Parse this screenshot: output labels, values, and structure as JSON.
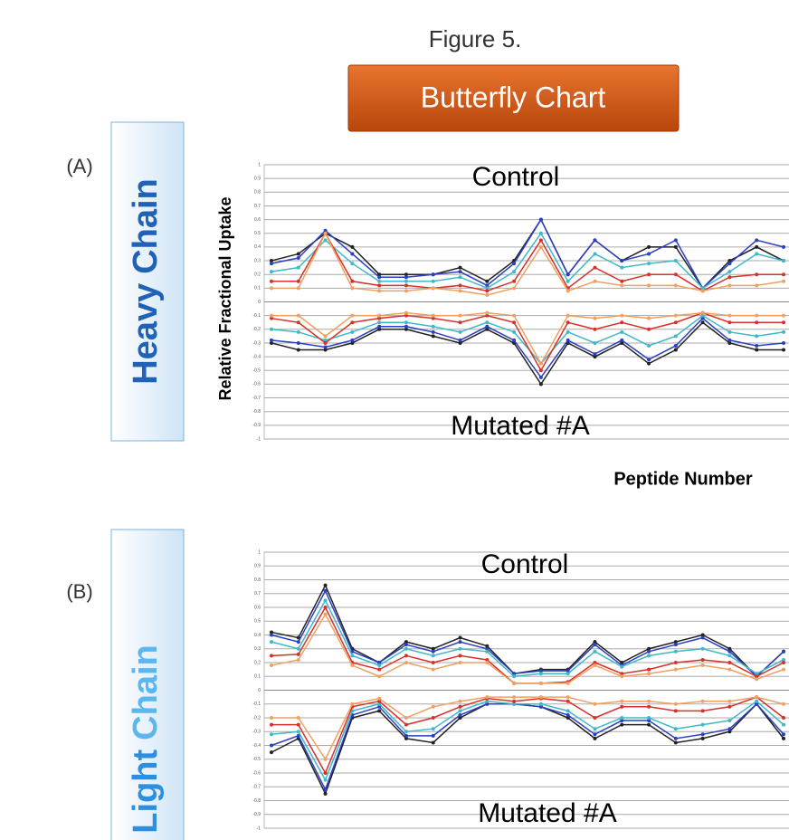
{
  "header": {
    "figure": "Figure 5.",
    "button": "Butterfly Chart"
  },
  "chart_data": [
    {
      "type": "line",
      "panel": "(A)",
      "side_label": [
        "Heavy",
        "Chain"
      ],
      "title": "Control",
      "annotation": "Mutated #A",
      "ylabel": "Relative Fractional Uptake",
      "xlabel": "Peptide Number",
      "categories": [
        null,
        null,
        null,
        null,
        null,
        null,
        null,
        null,
        null,
        null,
        null,
        null,
        null,
        null,
        null,
        null,
        null,
        null,
        null,
        null
      ],
      "ylim": [
        -1,
        1
      ],
      "yticks": [
        1,
        0.9,
        0.8,
        0.7,
        0.6,
        0.5,
        0.4,
        0.3,
        0.2,
        0.1,
        0,
        -0.1,
        -0.2,
        -0.3,
        -0.4,
        -0.5,
        -0.6,
        -0.7,
        -0.8,
        -0.9,
        -1
      ],
      "grid": true,
      "series": [
        {
          "color": "#222222",
          "values": [
            0.3,
            0.35,
            0.5,
            0.4,
            0.2,
            0.2,
            0.2,
            0.25,
            0.15,
            0.3,
            0.6,
            0.2,
            0.45,
            0.3,
            0.4,
            0.4,
            0.1,
            0.3,
            0.4,
            0.3
          ]
        },
        {
          "color": "#2b3fc4",
          "values": [
            0.28,
            0.32,
            0.52,
            0.35,
            0.18,
            0.18,
            0.2,
            0.22,
            0.12,
            0.28,
            0.6,
            0.2,
            0.45,
            0.3,
            0.35,
            0.45,
            0.1,
            0.28,
            0.45,
            0.4
          ]
        },
        {
          "color": "#3fb8c8",
          "values": [
            0.22,
            0.25,
            0.45,
            0.28,
            0.15,
            0.15,
            0.15,
            0.18,
            0.1,
            0.22,
            0.5,
            0.15,
            0.35,
            0.25,
            0.28,
            0.3,
            0.1,
            0.22,
            0.35,
            0.3
          ]
        },
        {
          "color": "#d8302a",
          "values": [
            0.15,
            0.15,
            0.5,
            0.15,
            0.12,
            0.12,
            0.1,
            0.12,
            0.08,
            0.15,
            0.45,
            0.1,
            0.25,
            0.15,
            0.2,
            0.2,
            0.08,
            0.18,
            0.2,
            0.2
          ]
        },
        {
          "color": "#f0a060",
          "values": [
            0.1,
            0.1,
            0.5,
            0.1,
            0.08,
            0.08,
            0.1,
            0.08,
            0.05,
            0.1,
            0.4,
            0.08,
            0.15,
            0.12,
            0.12,
            0.12,
            0.08,
            0.12,
            0.12,
            0.15
          ]
        },
        {
          "color": "#222222",
          "values": [
            -0.3,
            -0.35,
            -0.35,
            -0.3,
            -0.2,
            -0.2,
            -0.25,
            -0.3,
            -0.2,
            -0.3,
            -0.6,
            -0.3,
            -0.4,
            -0.3,
            -0.45,
            -0.35,
            -0.15,
            -0.3,
            -0.35,
            -0.35
          ]
        },
        {
          "color": "#2b3fc4",
          "values": [
            -0.28,
            -0.3,
            -0.33,
            -0.28,
            -0.18,
            -0.18,
            -0.22,
            -0.28,
            -0.18,
            -0.28,
            -0.55,
            -0.28,
            -0.38,
            -0.28,
            -0.42,
            -0.32,
            -0.12,
            -0.28,
            -0.32,
            -0.3
          ]
        },
        {
          "color": "#3fb8c8",
          "values": [
            -0.2,
            -0.22,
            -0.28,
            -0.22,
            -0.15,
            -0.15,
            -0.18,
            -0.22,
            -0.15,
            -0.22,
            -0.45,
            -0.22,
            -0.3,
            -0.22,
            -0.32,
            -0.25,
            -0.1,
            -0.22,
            -0.25,
            -0.22
          ]
        },
        {
          "color": "#d8302a",
          "values": [
            -0.12,
            -0.15,
            -0.3,
            -0.15,
            -0.12,
            -0.1,
            -0.12,
            -0.15,
            -0.1,
            -0.15,
            -0.5,
            -0.15,
            -0.2,
            -0.15,
            -0.2,
            -0.15,
            -0.08,
            -0.15,
            -0.15,
            -0.15
          ]
        },
        {
          "color": "#f0a060",
          "values": [
            -0.1,
            -0.1,
            -0.25,
            -0.1,
            -0.1,
            -0.08,
            -0.1,
            -0.1,
            -0.08,
            -0.1,
            -0.45,
            -0.1,
            -0.12,
            -0.1,
            -0.12,
            -0.1,
            -0.08,
            -0.1,
            -0.1,
            -0.1
          ]
        }
      ]
    },
    {
      "type": "line",
      "panel": "(B)",
      "side_label": [
        "Light",
        "Chain"
      ],
      "title": "Control",
      "annotation": "Mutated #A",
      "categories": [
        null,
        null,
        null,
        null,
        null,
        null,
        null,
        null,
        null,
        null,
        null,
        null,
        null,
        null,
        null,
        null,
        null,
        null,
        null,
        null
      ],
      "ylim": [
        -1,
        1
      ],
      "yticks": [
        1,
        0.9,
        0.8,
        0.7,
        0.6,
        0.5,
        0.4,
        0.3,
        0.2,
        0.1,
        0,
        -0.1,
        -0.2,
        -0.3,
        -0.4,
        -0.5,
        -0.6,
        -0.7,
        -0.8,
        -0.9,
        -1
      ],
      "grid": true,
      "series": [
        {
          "color": "#222222",
          "values": [
            0.42,
            0.38,
            0.76,
            0.3,
            0.2,
            0.35,
            0.3,
            0.38,
            0.32,
            0.12,
            0.15,
            0.15,
            0.35,
            0.2,
            0.3,
            0.35,
            0.4,
            0.3,
            0.1,
            0.28
          ]
        },
        {
          "color": "#2b3fc4",
          "values": [
            0.4,
            0.35,
            0.72,
            0.28,
            0.2,
            0.33,
            0.28,
            0.35,
            0.3,
            0.12,
            0.14,
            0.14,
            0.33,
            0.18,
            0.28,
            0.33,
            0.38,
            0.28,
            0.1,
            0.28
          ]
        },
        {
          "color": "#3fb8c8",
          "values": [
            0.35,
            0.3,
            0.65,
            0.25,
            0.18,
            0.3,
            0.25,
            0.3,
            0.28,
            0.1,
            0.12,
            0.12,
            0.28,
            0.17,
            0.25,
            0.28,
            0.3,
            0.25,
            0.12,
            0.22
          ]
        },
        {
          "color": "#d8302a",
          "values": [
            0.25,
            0.26,
            0.6,
            0.2,
            0.15,
            0.25,
            0.2,
            0.25,
            0.22,
            0.05,
            0.05,
            0.06,
            0.2,
            0.12,
            0.15,
            0.2,
            0.22,
            0.2,
            0.1,
            0.2
          ]
        },
        {
          "color": "#f0a060",
          "values": [
            0.18,
            0.22,
            0.55,
            0.18,
            0.1,
            0.2,
            0.15,
            0.2,
            0.2,
            0.05,
            0.05,
            0.05,
            0.18,
            0.1,
            0.12,
            0.15,
            0.18,
            0.15,
            0.08,
            0.15
          ]
        },
        {
          "color": "#222222",
          "values": [
            -0.45,
            -0.35,
            -0.75,
            -0.2,
            -0.15,
            -0.35,
            -0.38,
            -0.2,
            -0.1,
            -0.1,
            -0.12,
            -0.2,
            -0.35,
            -0.25,
            -0.25,
            -0.38,
            -0.35,
            -0.3,
            -0.1,
            -0.35
          ]
        },
        {
          "color": "#2b3fc4",
          "values": [
            -0.4,
            -0.33,
            -0.72,
            -0.18,
            -0.12,
            -0.33,
            -0.33,
            -0.18,
            -0.1,
            -0.1,
            -0.12,
            -0.18,
            -0.32,
            -0.22,
            -0.22,
            -0.35,
            -0.32,
            -0.28,
            -0.1,
            -0.32
          ]
        },
        {
          "color": "#3fb8c8",
          "values": [
            -0.32,
            -0.3,
            -0.65,
            -0.15,
            -0.1,
            -0.3,
            -0.28,
            -0.15,
            -0.08,
            -0.1,
            -0.1,
            -0.15,
            -0.28,
            -0.2,
            -0.2,
            -0.28,
            -0.25,
            -0.22,
            -0.08,
            -0.25
          ]
        },
        {
          "color": "#d8302a",
          "values": [
            -0.25,
            -0.25,
            -0.6,
            -0.12,
            -0.08,
            -0.25,
            -0.2,
            -0.12,
            -0.06,
            -0.08,
            -0.06,
            -0.08,
            -0.2,
            -0.12,
            -0.12,
            -0.15,
            -0.15,
            -0.12,
            -0.05,
            -0.2
          ]
        },
        {
          "color": "#f0a060",
          "values": [
            -0.2,
            -0.2,
            -0.5,
            -0.1,
            -0.06,
            -0.2,
            -0.12,
            -0.08,
            -0.05,
            -0.05,
            -0.05,
            -0.05,
            -0.1,
            -0.08,
            -0.08,
            -0.1,
            -0.08,
            -0.08,
            -0.05,
            -0.1
          ]
        }
      ]
    }
  ]
}
